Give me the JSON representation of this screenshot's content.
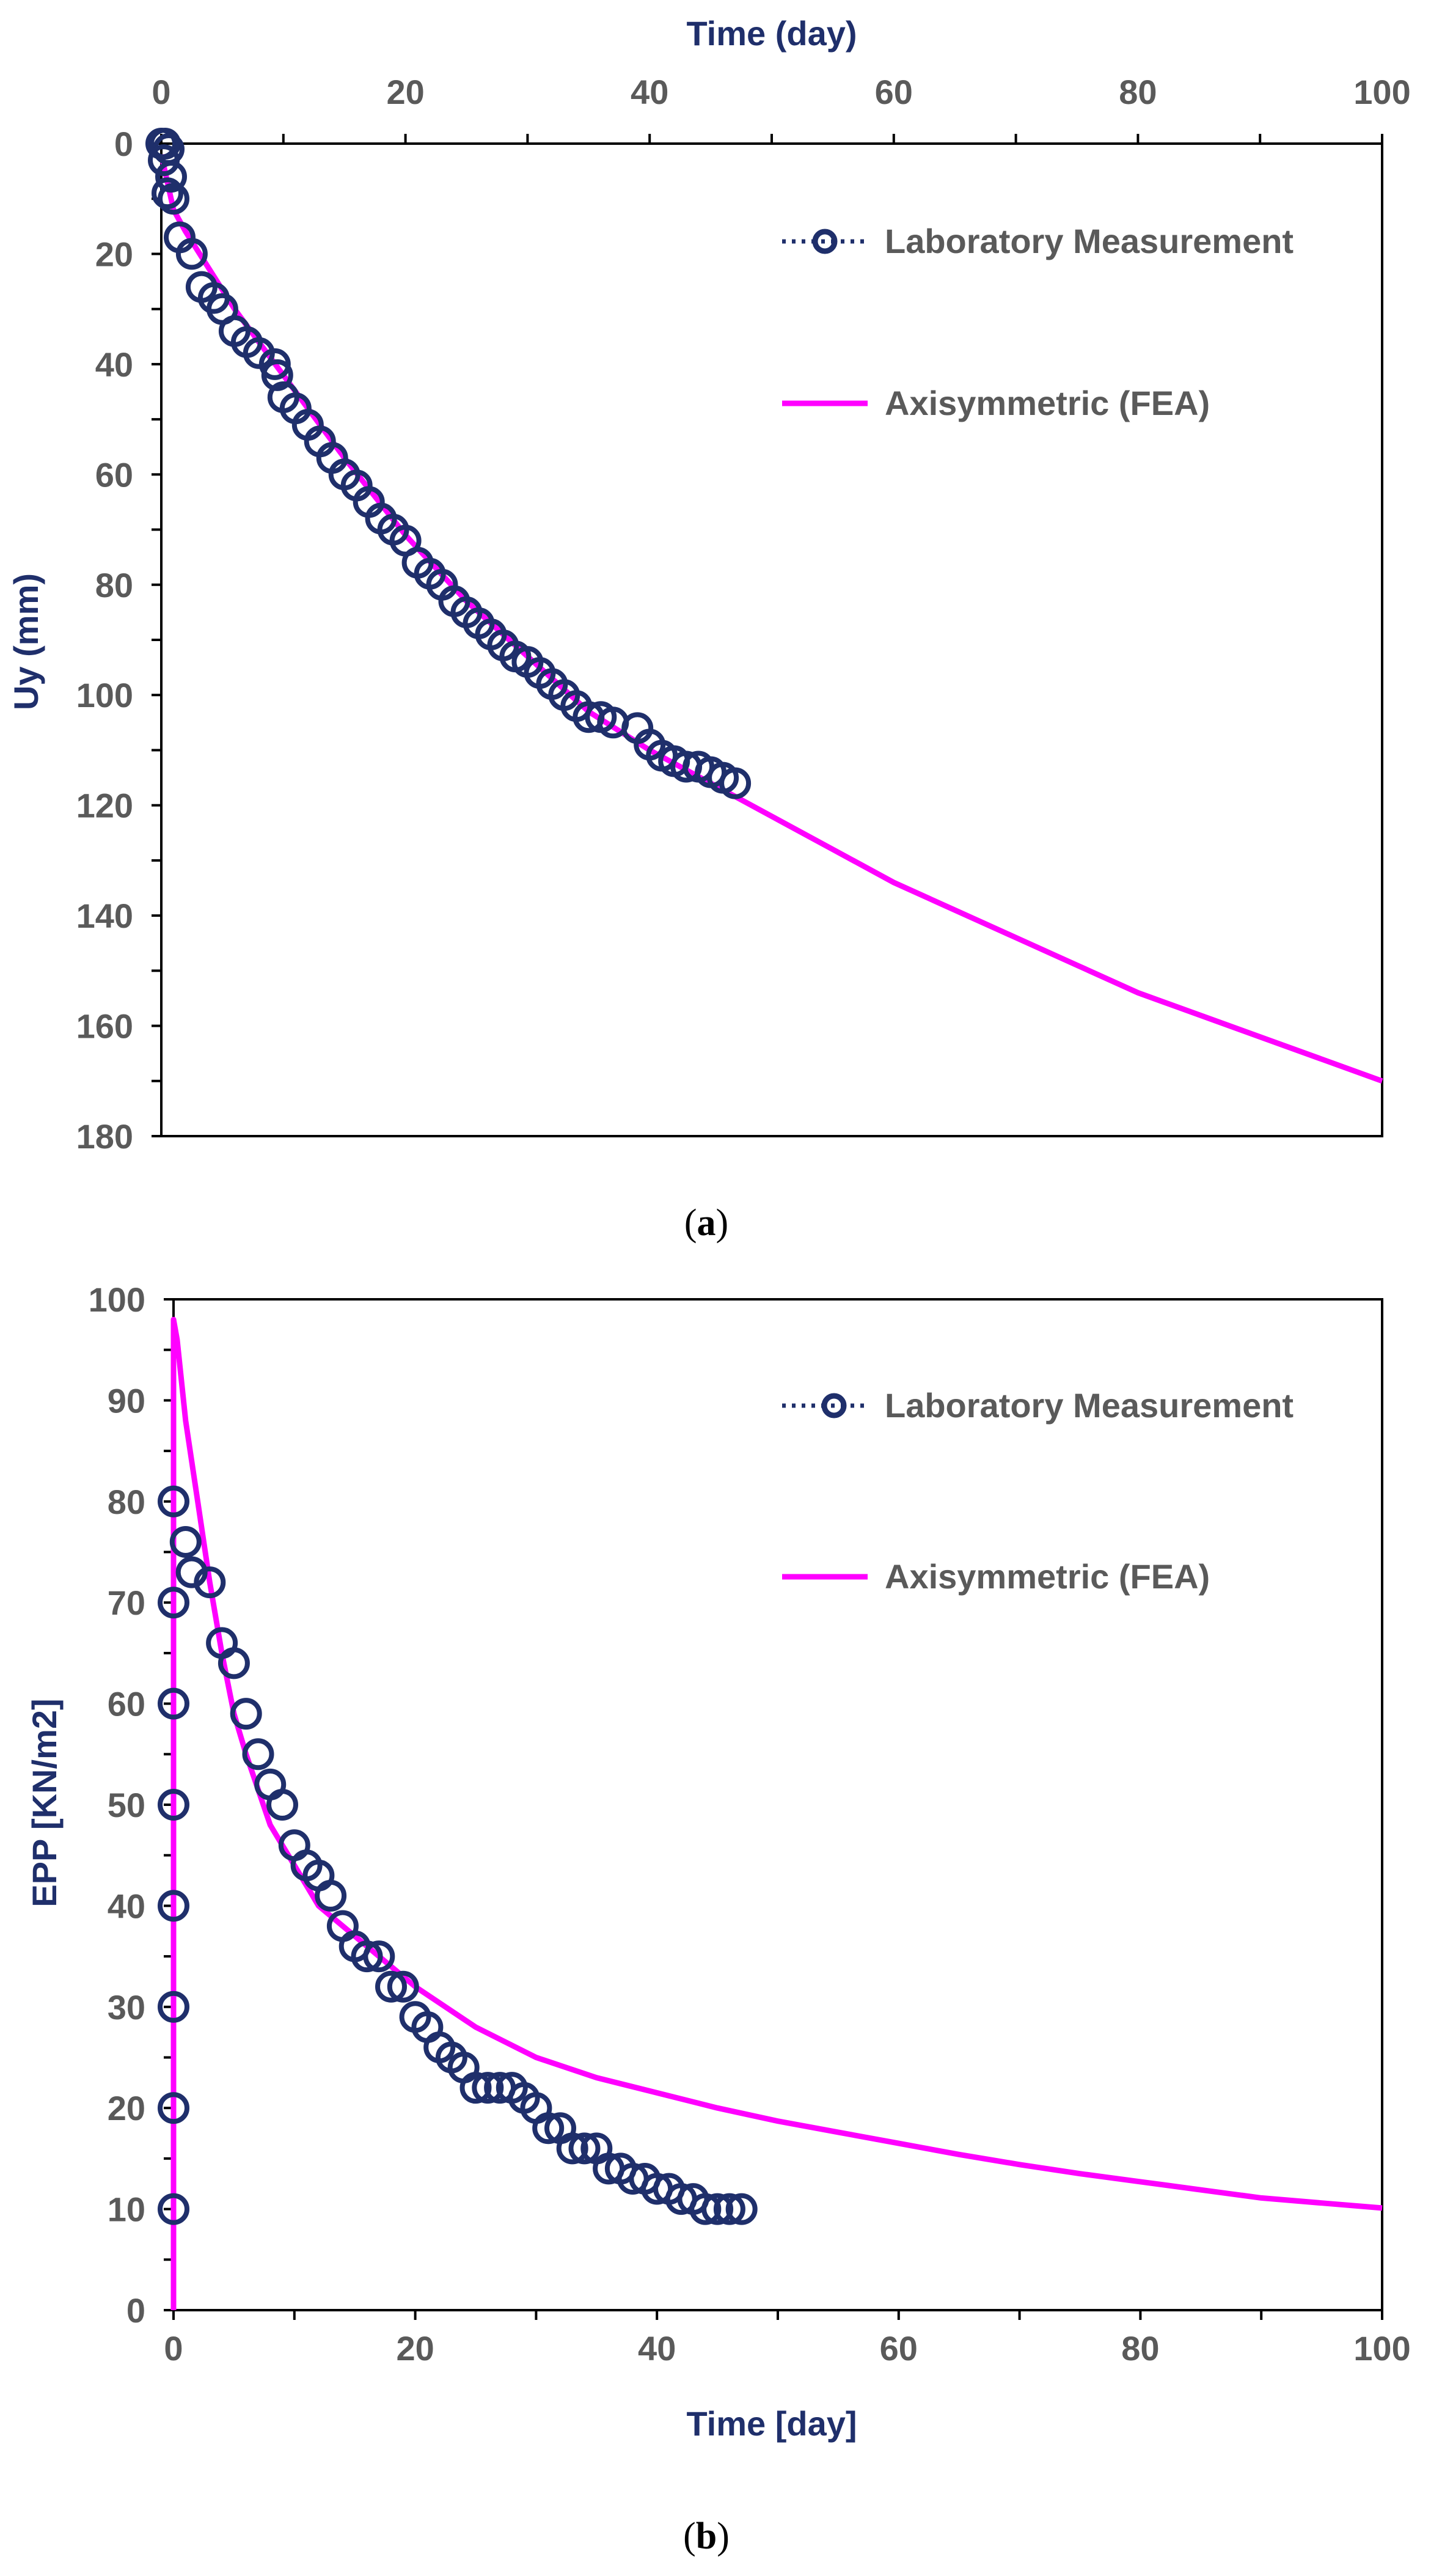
{
  "colors": {
    "measurement": "#1f2f6b",
    "fea": "#ff00ff",
    "tick_text": "#5a5a5a",
    "axis_title": "#1f2f6b"
  },
  "chart_data": [
    {
      "id": "a",
      "type": "scatter+line",
      "caption_letter": "a",
      "caption_open": "(",
      "caption_close": ")",
      "xlabel": "Time (day)",
      "ylabel": "Uy (mm)",
      "x_axis_position": "top",
      "y_inverted": true,
      "xlim": [
        0,
        100
      ],
      "ylim": [
        0,
        180
      ],
      "xticks": [
        0,
        20,
        40,
        60,
        80,
        100
      ],
      "yticks": [
        0,
        20,
        40,
        60,
        80,
        100,
        120,
        140,
        160,
        180
      ],
      "legend_position": "top-right",
      "series": [
        {
          "name": "Laboratory Measurement",
          "kind": "scatter",
          "x": [
            0,
            0.3,
            0.6,
            0.2,
            0.8,
            1.0,
            0.5,
            1.5,
            2.5,
            3.3,
            4.3,
            5.0,
            6.0,
            7.0,
            8.0,
            9.3,
            9.5,
            10.0,
            11.0,
            12.0,
            13.0,
            14.0,
            15.0,
            16.0,
            17.0,
            18.0,
            19.0,
            20.0,
            21.0,
            22.0,
            23.0,
            24.0,
            25.0,
            26.0,
            27.0,
            28.0,
            29.0,
            30.0,
            31.0,
            32.0,
            33.0,
            34.0,
            35.0,
            36.0,
            37.0,
            39.0,
            40.0,
            41.0,
            42.0,
            43.0,
            44.0,
            45.0,
            46.0,
            47.0
          ],
          "y": [
            0,
            0,
            1,
            3,
            6,
            10,
            9,
            17,
            20,
            26,
            28,
            30,
            34,
            36,
            38,
            40,
            42,
            46,
            48,
            51,
            54,
            57,
            60,
            62,
            65,
            68,
            70,
            72,
            76,
            78,
            80,
            83,
            85,
            87,
            89,
            91,
            93,
            94,
            96,
            98,
            100,
            102,
            104,
            104,
            105,
            106,
            109,
            111,
            112,
            113,
            113,
            114,
            115,
            116
          ]
        },
        {
          "name": "Axisymmetric (FEA)",
          "kind": "line",
          "x": [
            0,
            1,
            2,
            4,
            6,
            8,
            10,
            15,
            20,
            25,
            30,
            35,
            40,
            45,
            50,
            55,
            60,
            65,
            70,
            75,
            80,
            85,
            90,
            95,
            100
          ],
          "y": [
            2,
            12,
            16,
            23,
            30,
            36,
            42,
            57,
            71,
            83,
            93,
            103,
            110,
            116,
            122,
            128,
            134,
            139,
            144,
            149,
            154,
            158,
            162,
            166,
            170
          ]
        }
      ]
    },
    {
      "id": "b",
      "type": "scatter+line",
      "caption_letter": "b",
      "caption_open": "(",
      "caption_close": ")",
      "xlabel": "Time [day]",
      "ylabel": "EPP [KN/m2]",
      "x_axis_position": "bottom",
      "y_inverted": false,
      "xlim": [
        0,
        100
      ],
      "ylim": [
        0,
        100
      ],
      "xticks": [
        0,
        20,
        40,
        60,
        80,
        100
      ],
      "yticks": [
        0,
        10,
        20,
        30,
        40,
        50,
        60,
        70,
        80,
        90,
        100
      ],
      "legend_position": "top-right",
      "series": [
        {
          "name": "Laboratory Measurement",
          "kind": "scatter",
          "x": [
            0,
            0,
            0,
            0,
            0,
            0,
            0,
            0,
            1,
            1.5,
            3,
            4,
            5,
            6,
            7,
            8,
            9,
            10,
            11,
            12,
            13,
            14,
            15,
            16,
            17,
            18,
            19,
            20,
            21,
            22,
            23,
            24,
            25,
            26,
            27,
            28,
            29,
            30,
            31,
            32,
            33,
            34,
            35,
            36,
            37,
            38,
            39,
            40,
            41,
            42,
            43,
            44,
            45,
            46,
            47
          ],
          "y": [
            80,
            70,
            60,
            50,
            40,
            30,
            20,
            10,
            76,
            73,
            72,
            66,
            64,
            59,
            55,
            52,
            50,
            46,
            44,
            43,
            41,
            38,
            36,
            35,
            35,
            32,
            32,
            29,
            28,
            26,
            25,
            24,
            22,
            22,
            22,
            22,
            21,
            20,
            18,
            18,
            16,
            16,
            16,
            14,
            14,
            13,
            13,
            12,
            12,
            11,
            11,
            10,
            10,
            10,
            10
          ]
        },
        {
          "name": "Axisymmetric (FEA)",
          "kind": "line",
          "x": [
            0,
            0,
            0.3,
            1,
            2,
            3,
            4,
            5,
            6,
            8,
            10,
            12,
            15,
            18,
            20,
            25,
            30,
            35,
            40,
            45,
            50,
            55,
            60,
            65,
            70,
            75,
            80,
            85,
            90,
            95,
            100
          ],
          "y": [
            0,
            98,
            96,
            88,
            80,
            72,
            65,
            59,
            55,
            48,
            44,
            40,
            37,
            34,
            32,
            28,
            25,
            23,
            21.5,
            20,
            18.7,
            17.6,
            16.5,
            15.4,
            14.4,
            13.5,
            12.7,
            11.9,
            11.1,
            10.6,
            10.1
          ]
        }
      ]
    }
  ]
}
